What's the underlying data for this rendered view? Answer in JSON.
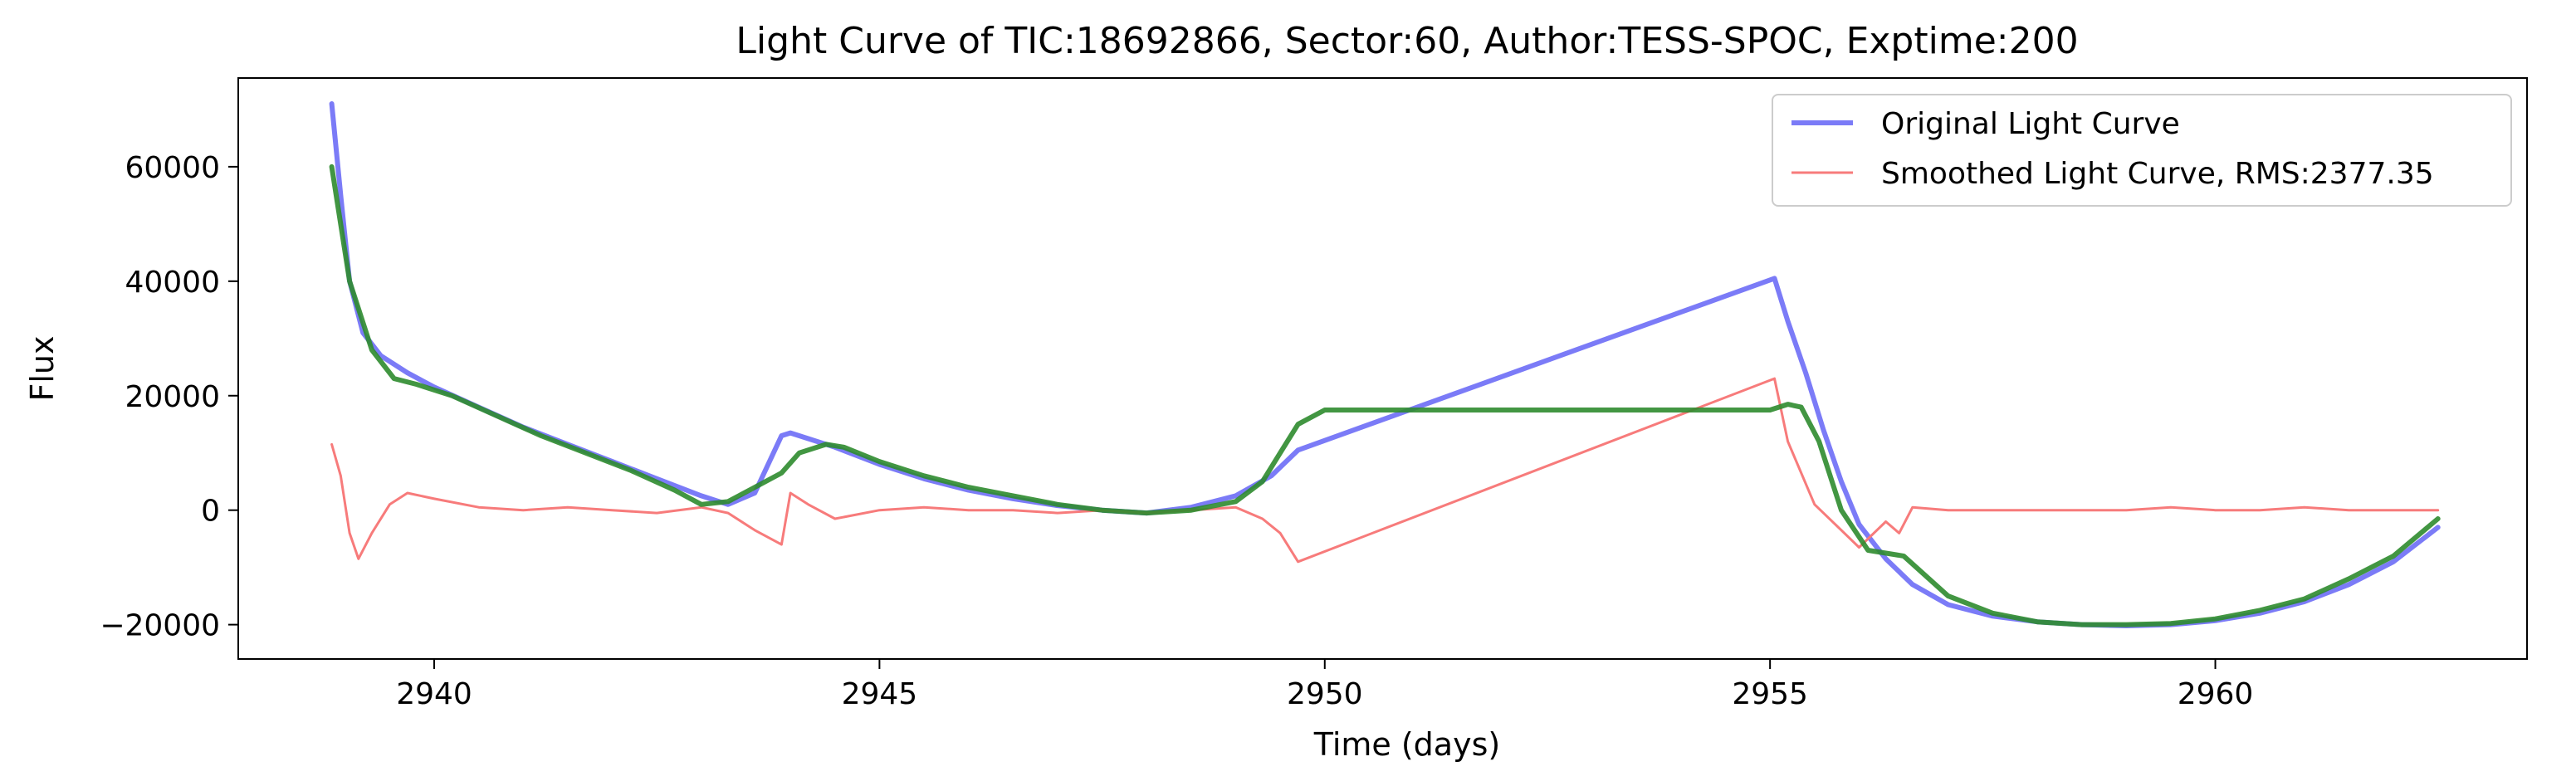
{
  "chart_data": {
    "type": "line",
    "title": "Light Curve of TIC:18692866, Sector:60, Author:TESS-SPOC, Exptime:200",
    "xlabel": "Time (days)",
    "ylabel": "Flux",
    "xlim": [
      2937.8,
      2963.5
    ],
    "ylim": [
      -26000,
      75500
    ],
    "xticks": [
      2940,
      2945,
      2950,
      2955,
      2960
    ],
    "yticks": [
      -20000,
      0,
      20000,
      40000,
      60000
    ],
    "ytick_labels": [
      "−20000",
      "0",
      "20000",
      "40000",
      "60000"
    ],
    "grid": false,
    "legend_position": "top-right",
    "legend": [
      {
        "label": "Original Light Curve",
        "color": "#7b7bf7"
      },
      {
        "label": "Smoothed Light Curve, RMS:2377.35",
        "color": "#f77b7b"
      }
    ],
    "series": [
      {
        "name": "Original Light Curve",
        "color": "#7b7bf7",
        "x": [
          2938.85,
          2938.95,
          2939.05,
          2939.2,
          2939.4,
          2939.7,
          2940.0,
          2940.5,
          2941.0,
          2941.5,
          2942.0,
          2942.5,
          2943.0,
          2943.3,
          2943.6,
          2943.9,
          2944.0,
          2944.2,
          2944.5,
          2945.0,
          2945.5,
          2946.0,
          2946.5,
          2947.0,
          2947.5,
          2948.0,
          2948.5,
          2949.0,
          2949.4,
          2949.7,
          2955.05,
          2955.2,
          2955.4,
          2955.6,
          2955.8,
          2956.0,
          2956.3,
          2956.6,
          2957.0,
          2957.5,
          2958.0,
          2958.5,
          2959.0,
          2959.5,
          2960.0,
          2960.5,
          2961.0,
          2961.5,
          2962.0,
          2962.5
        ],
        "y": [
          71000,
          55000,
          40000,
          31000,
          27000,
          24000,
          21500,
          18000,
          14500,
          11500,
          8500,
          5500,
          2500,
          1000,
          3000,
          13000,
          13500,
          12500,
          11000,
          8000,
          5500,
          3500,
          2000,
          800,
          0,
          -500,
          500,
          2500,
          6000,
          10500,
          40500,
          33000,
          24000,
          14000,
          5000,
          -2500,
          -8500,
          -13000,
          -16500,
          -18500,
          -19500,
          -20000,
          -20200,
          -20000,
          -19300,
          -18000,
          -16000,
          -13000,
          -9000,
          -3000
        ]
      },
      {
        "name": "Smoothed Light Curve, RMS:2377.35",
        "color": "#f77b7b",
        "x": [
          2938.85,
          2938.95,
          2939.05,
          2939.15,
          2939.3,
          2939.5,
          2939.7,
          2940.0,
          2940.5,
          2941.0,
          2941.5,
          2942.0,
          2942.5,
          2943.0,
          2943.3,
          2943.6,
          2943.9,
          2944.0,
          2944.2,
          2944.5,
          2945.0,
          2945.5,
          2946.0,
          2946.5,
          2947.0,
          2947.5,
          2948.0,
          2948.5,
          2949.0,
          2949.3,
          2949.5,
          2949.7,
          2955.05,
          2955.2,
          2955.5,
          2955.8,
          2956.0,
          2956.3,
          2956.45,
          2956.6,
          2957.0,
          2957.5,
          2958.0,
          2958.5,
          2959.0,
          2959.5,
          2960.0,
          2960.5,
          2961.0,
          2961.5,
          2962.0,
          2962.5
        ],
        "y": [
          11500,
          6000,
          -4000,
          -8500,
          -4000,
          1000,
          3000,
          2000,
          500,
          0,
          500,
          0,
          -500,
          500,
          -500,
          -3500,
          -6000,
          3000,
          1000,
          -1500,
          0,
          500,
          0,
          0,
          -500,
          0,
          -500,
          0,
          500,
          -1500,
          -4000,
          -9000,
          23000,
          12000,
          1000,
          -3500,
          -6500,
          -2000,
          -4000,
          500,
          0,
          0,
          0,
          0,
          0,
          500,
          0,
          0,
          500,
          0,
          0,
          0
        ]
      },
      {
        "name": "",
        "color": "#2e8b2e",
        "x": [
          2938.85,
          2939.05,
          2939.3,
          2939.55,
          2939.8,
          2940.2,
          2940.7,
          2941.2,
          2941.7,
          2942.2,
          2942.7,
          2943.0,
          2943.3,
          2943.6,
          2943.9,
          2944.1,
          2944.4,
          2944.6,
          2945.0,
          2945.5,
          2946.0,
          2946.5,
          2947.0,
          2947.5,
          2948.0,
          2948.5,
          2949.0,
          2949.3,
          2949.5,
          2949.7,
          2950.0,
          2955.0,
          2955.2,
          2955.35,
          2955.55,
          2955.8,
          2956.1,
          2956.5,
          2957.0,
          2957.5,
          2958.0,
          2958.5,
          2959.0,
          2959.5,
          2960.0,
          2960.5,
          2961.0,
          2961.5,
          2962.0,
          2962.5
        ],
        "y": [
          60000,
          40000,
          28000,
          23000,
          22000,
          20000,
          16500,
          13000,
          10000,
          7000,
          3500,
          1000,
          1500,
          4000,
          6500,
          10000,
          11500,
          11000,
          8500,
          6000,
          4000,
          2500,
          1000,
          0,
          -500,
          0,
          1500,
          5000,
          10000,
          15000,
          17500,
          17500,
          18500,
          18000,
          12000,
          0,
          -7000,
          -8000,
          -15000,
          -18000,
          -19500,
          -20000,
          -20000,
          -19800,
          -19000,
          -17500,
          -15500,
          -12000,
          -8000,
          -1500
        ]
      }
    ]
  }
}
